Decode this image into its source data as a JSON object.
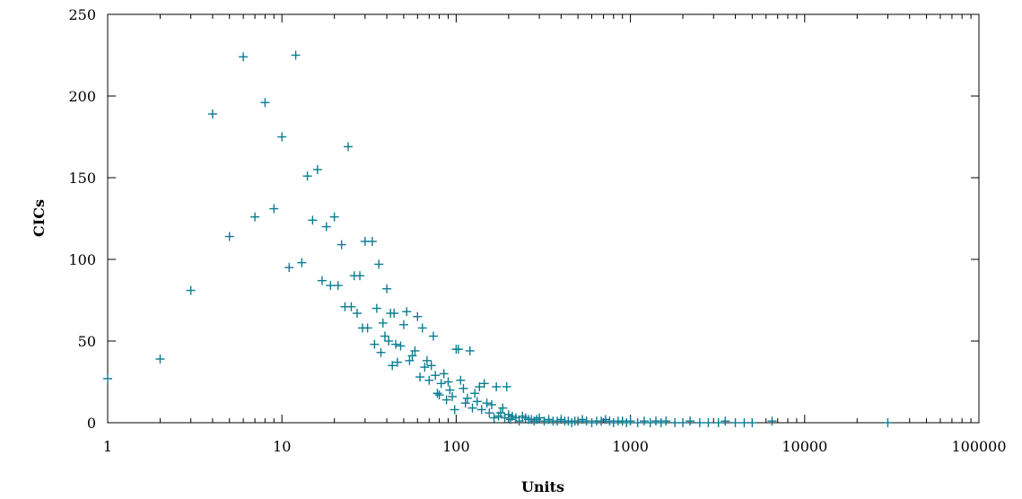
{
  "chart_data": {
    "type": "scatter",
    "title": "",
    "xlabel": "Units",
    "ylabel": "CICs",
    "x_scale": "log",
    "xlim": [
      1,
      100000
    ],
    "ylim": [
      0,
      250
    ],
    "x_ticks": [
      1,
      10,
      100,
      1000,
      10000,
      100000
    ],
    "x_tick_labels": [
      "1",
      "10",
      "100",
      "1000",
      "10000",
      "100000"
    ],
    "y_ticks": [
      0,
      50,
      100,
      150,
      200,
      250
    ],
    "y_tick_labels": [
      "0",
      "50",
      "100",
      "150",
      "200",
      "250"
    ],
    "grid": false,
    "legend": "none",
    "marker": "plus",
    "color": "#0b7c92",
    "series": [
      {
        "x": [
          1,
          2,
          3,
          4,
          5,
          6,
          7,
          8,
          9,
          10,
          11,
          12,
          13,
          14,
          15,
          16,
          17,
          18,
          19,
          20,
          21,
          22,
          23,
          24,
          25,
          26,
          27,
          28,
          29,
          30,
          31,
          33,
          34,
          35,
          36,
          37,
          38,
          39,
          40,
          41,
          42,
          43,
          44,
          45,
          46,
          48,
          50,
          52,
          54,
          56,
          58,
          60,
          62,
          64,
          66,
          68,
          70,
          72,
          74,
          76,
          78,
          80,
          82,
          85,
          88,
          90,
          92,
          95,
          98,
          100,
          103,
          106,
          110,
          113,
          116,
          120,
          124,
          128,
          132,
          136,
          140,
          145,
          150,
          155,
          160,
          165,
          170,
          175,
          180,
          185,
          190,
          195,
          200,
          205,
          210,
          220,
          230,
          240,
          250,
          260,
          270,
          280,
          290,
          300,
          320,
          340,
          360,
          380,
          400,
          420,
          440,
          460,
          480,
          500,
          530,
          560,
          600,
          640,
          680,
          720,
          760,
          800,
          850,
          900,
          950,
          1000,
          1100,
          1200,
          1300,
          1400,
          1500,
          1600,
          1800,
          2000,
          2200,
          2500,
          2800,
          3200,
          3500,
          4000,
          4500,
          5000,
          6500,
          30000
        ],
        "y": [
          27,
          39,
          81,
          189,
          114,
          224,
          126,
          196,
          131,
          175,
          95,
          225,
          98,
          151,
          124,
          155,
          87,
          120,
          84,
          126,
          84,
          109,
          71,
          169,
          71,
          90,
          67,
          90,
          58,
          111,
          58,
          111,
          48,
          70,
          97,
          43,
          61,
          53,
          82,
          50,
          67,
          35,
          67,
          48,
          37,
          47,
          60,
          68,
          38,
          41,
          44,
          65,
          28,
          58,
          34,
          38,
          26,
          35,
          53,
          29,
          18,
          17,
          24,
          30,
          14,
          25,
          20,
          16,
          8,
          45,
          45,
          26,
          21,
          12,
          15,
          44,
          9,
          18,
          13,
          22,
          8,
          24,
          12,
          6,
          11,
          3,
          22,
          4,
          6,
          9,
          3,
          22,
          5,
          2,
          4,
          3,
          1,
          4,
          3,
          2,
          2,
          1,
          2,
          3,
          1,
          2,
          1,
          1,
          2,
          1,
          1,
          0,
          1,
          1,
          2,
          1,
          0,
          1,
          1,
          2,
          1,
          0,
          1,
          1,
          0,
          1,
          0,
          1,
          0,
          1,
          0,
          1,
          0,
          0,
          1,
          0,
          0,
          0,
          1,
          0,
          0,
          0,
          1,
          0
        ]
      }
    ]
  }
}
